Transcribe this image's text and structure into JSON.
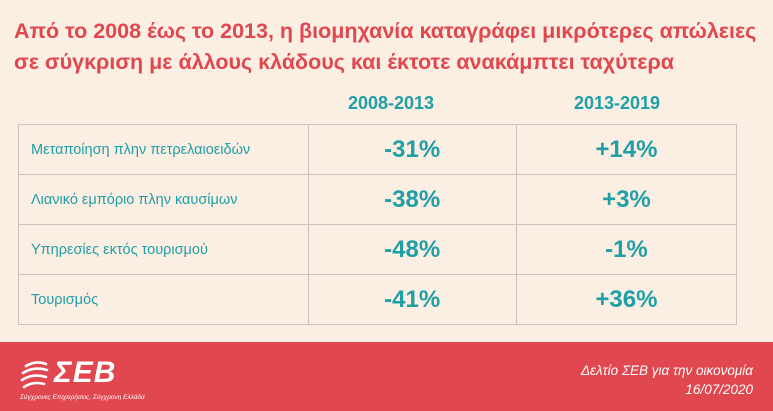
{
  "title": {
    "line1": "Από το 2008 έως το 2013, η βιομηχανία καταγράφει μικρότερες απώλειες",
    "line2": "σε σύγκριση με άλλους κλάδους και έκτοτε ανακάμπτει ταχύτερα"
  },
  "columns": [
    "2008-2013",
    "2013-2019"
  ],
  "rows": [
    {
      "label": "Μεταποίηση πλην πετρελαιοειδών",
      "v1": "-31%",
      "v2": "+14%"
    },
    {
      "label": "Λιανικό εμπόριο πλην καυσίμων",
      "v1": "-38%",
      "v2": "+3%"
    },
    {
      "label": "Υπηρεσίες εκτός τουρισμού",
      "v1": "-48%",
      "v2": "-1%"
    },
    {
      "label": "Τουρισμός",
      "v1": "-41%",
      "v2": "+36%"
    }
  ],
  "footer": {
    "logo_text": "ΣΕΒ",
    "logo_tagline": "Σύγχρονες Επιχειρήσεις, Σύγχρονη Ελλάδα",
    "publication": "Δελτίο ΣΕΒ για την οικονομία",
    "date": "16/07/2020"
  },
  "colors": {
    "accent": "#e1474f",
    "teal": "#1f9fa6",
    "background": "#fbeee3"
  }
}
